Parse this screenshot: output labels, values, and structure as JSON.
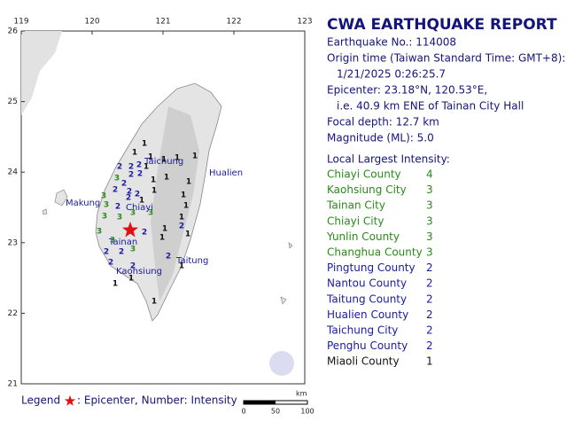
{
  "map": {
    "lon_ticks": [
      119,
      120,
      121,
      122,
      123
    ],
    "lat_ticks": [
      26,
      25,
      24,
      23,
      22,
      21
    ],
    "cities": [
      "Taichung",
      "Hualien",
      "Makung",
      "Chiayi",
      "Tainan",
      "Taitung",
      "Kaohsiung"
    ],
    "stations": [
      1,
      1,
      1,
      1,
      1,
      1,
      2,
      2,
      2,
      2,
      2,
      3,
      2,
      1,
      1,
      1,
      2,
      2,
      2,
      3,
      3,
      2,
      1,
      1,
      1,
      3,
      3,
      3,
      1,
      1,
      2,
      1,
      2,
      3,
      3,
      2,
      2,
      3,
      1,
      2,
      1,
      2,
      2,
      1,
      1,
      1,
      1,
      2,
      1,
      3
    ]
  },
  "report": {
    "title": "CWA EARTHQUAKE REPORT",
    "lines": [
      "Earthquake No.: 114008",
      "Origin time (Taiwan Standard Time: GMT+8):",
      "1/21/2025  0:26:25.7",
      "Epicenter: 23.18°N, 120.53°E,",
      "i.e. 40.9 km ENE of Tainan City Hall",
      "Focal depth: 12.7 km",
      "Magnitude (ML): 5.0"
    ],
    "intensity_title": "Local Largest Intensity:",
    "intensity": [
      {
        "county": "Chiayi County",
        "value": 4
      },
      {
        "county": "Kaohsiung City",
        "value": 3
      },
      {
        "county": "Tainan City",
        "value": 3
      },
      {
        "county": "Chiayi City",
        "value": 3
      },
      {
        "county": "Yunlin County",
        "value": 3
      },
      {
        "county": "Changhua County",
        "value": 3
      },
      {
        "county": "Pingtung County",
        "value": 2
      },
      {
        "county": "Nantou County",
        "value": 2
      },
      {
        "county": "Taitung County",
        "value": 2
      },
      {
        "county": "Hualien County",
        "value": 2
      },
      {
        "county": "Taichung City",
        "value": 2
      },
      {
        "county": "Penghu County",
        "value": 2
      },
      {
        "county": "Miaoli County",
        "value": 1
      }
    ]
  },
  "legend": {
    "label": "Legend",
    "text": ": Epicenter, Number: Intensity"
  },
  "scale": {
    "unit": "km",
    "ticks": [
      0,
      50,
      100
    ]
  }
}
